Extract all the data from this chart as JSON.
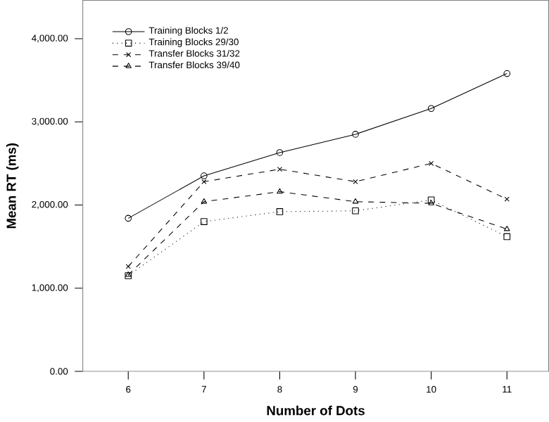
{
  "chart_data": {
    "type": "line",
    "xlabel": "Number of Dots",
    "ylabel": "Mean RT (ms)",
    "categories": [
      "6",
      "7",
      "8",
      "9",
      "10",
      "11"
    ],
    "series": [
      {
        "name": "Training Blocks 1/2",
        "color": "#000000",
        "line_style": "solid",
        "marker": "circle",
        "values": [
          1840,
          2350,
          2630,
          2850,
          3160,
          3580
        ]
      },
      {
        "name": "Training Blocks 29/30",
        "color": "#000000",
        "line_style": "dotted",
        "marker": "square",
        "values": [
          1150,
          1800,
          1920,
          1930,
          2060,
          1620
        ]
      },
      {
        "name": "Transfer Blocks 31/32",
        "color": "#000000",
        "line_style": "dashed",
        "marker": "cross",
        "values": [
          1260,
          2280,
          2430,
          2280,
          2500,
          2070
        ]
      },
      {
        "name": "Transfer Blocks 39/40",
        "color": "#000000",
        "line_style": "dashed",
        "marker": "triangle",
        "values": [
          1160,
          2040,
          2160,
          2040,
          2020,
          1710
        ]
      }
    ],
    "ylim": [
      0,
      4460
    ],
    "yticks": [
      {
        "value": 0,
        "label": "0.00"
      },
      {
        "value": 1000,
        "label": "1,000.00"
      },
      {
        "value": 2000,
        "label": "2,000.00"
      },
      {
        "value": 3000,
        "label": "3,000.00"
      },
      {
        "value": 4000,
        "label": "4,000.00"
      }
    ],
    "legend": "top left",
    "grid": false
  }
}
